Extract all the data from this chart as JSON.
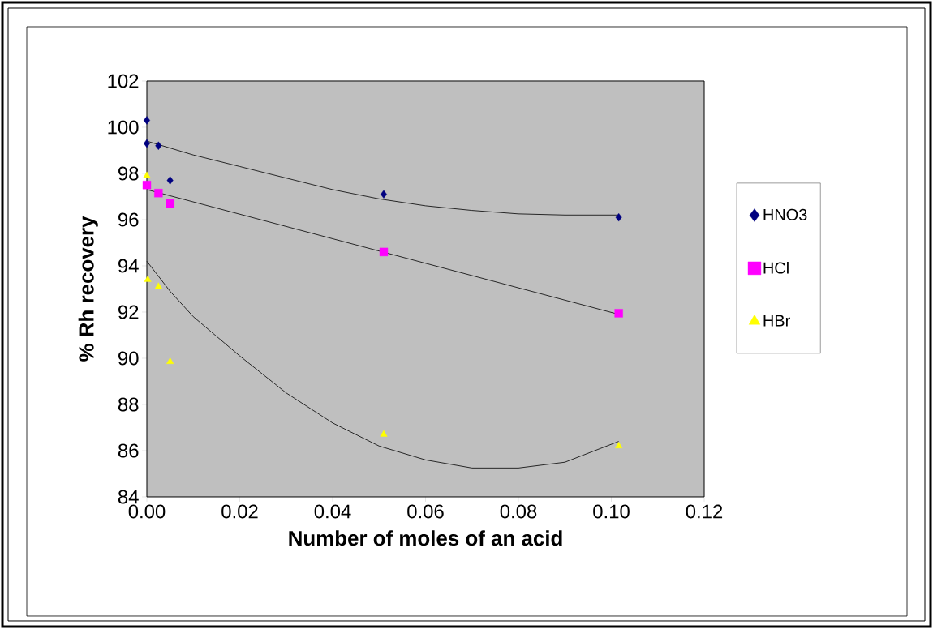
{
  "chart_data": {
    "type": "scatter",
    "xlabel": "Number of moles of an acid",
    "ylabel": "% Rh recovery",
    "xlim": [
      0,
      0.12
    ],
    "ylim": [
      84,
      102
    ],
    "xticks": [
      {
        "value": 0,
        "label": "0.00"
      },
      {
        "value": 0.02,
        "label": "0.02"
      },
      {
        "value": 0.04,
        "label": "0.04"
      },
      {
        "value": 0.06,
        "label": "0.06"
      },
      {
        "value": 0.08,
        "label": "0.08"
      },
      {
        "value": 0.1,
        "label": "0.10"
      },
      {
        "value": 0.12,
        "label": "0.12"
      }
    ],
    "yticks": [
      84,
      86,
      88,
      90,
      92,
      94,
      96,
      98,
      100,
      102
    ],
    "grid": false,
    "legend": "right",
    "series": [
      {
        "name": "HNO3",
        "marker": "diamond",
        "color": "#000080",
        "x": [
          0,
          0,
          0.0025,
          0.005,
          0.051,
          0.1016
        ],
        "values": [
          100.3,
          99.3,
          99.2,
          97.7,
          97.1,
          96.1
        ]
      },
      {
        "name": "HCl",
        "marker": "square",
        "color": "#ff00ff",
        "x": [
          0,
          0.0025,
          0.005,
          0.051,
          0.1016
        ],
        "values": [
          97.5,
          97.15,
          96.7,
          94.6,
          91.95
        ]
      },
      {
        "name": "HBr",
        "marker": "triangle",
        "color": "#ffff00",
        "x": [
          0,
          0.0002,
          0.0025,
          0.005,
          0.051,
          0.1016
        ],
        "values": [
          97.9,
          93.4,
          93.1,
          89.85,
          86.7,
          86.2
        ]
      },
      {
        "type": "line",
        "marker": "none",
        "color": "#000000",
        "x": [
          0,
          0.01,
          0.02,
          0.03,
          0.04,
          0.05,
          0.06,
          0.07,
          0.08,
          0.09,
          0.1016
        ],
        "values": [
          99.4,
          98.8,
          98.3,
          97.8,
          97.3,
          96.9,
          96.6,
          96.4,
          96.25,
          96.2,
          96.2
        ]
      },
      {
        "type": "line",
        "marker": "none",
        "color": "#000000",
        "x": [
          0,
          0.1016
        ],
        "values": [
          97.3,
          91.9
        ]
      },
      {
        "type": "line",
        "marker": "none",
        "color": "#000000",
        "x": [
          0,
          0.005,
          0.01,
          0.02,
          0.03,
          0.04,
          0.05,
          0.06,
          0.07,
          0.08,
          0.09,
          0.1016
        ],
        "values": [
          94.2,
          92.9,
          91.8,
          90.1,
          88.5,
          87.2,
          86.2,
          85.6,
          85.25,
          85.25,
          85.5,
          86.4
        ]
      }
    ]
  }
}
